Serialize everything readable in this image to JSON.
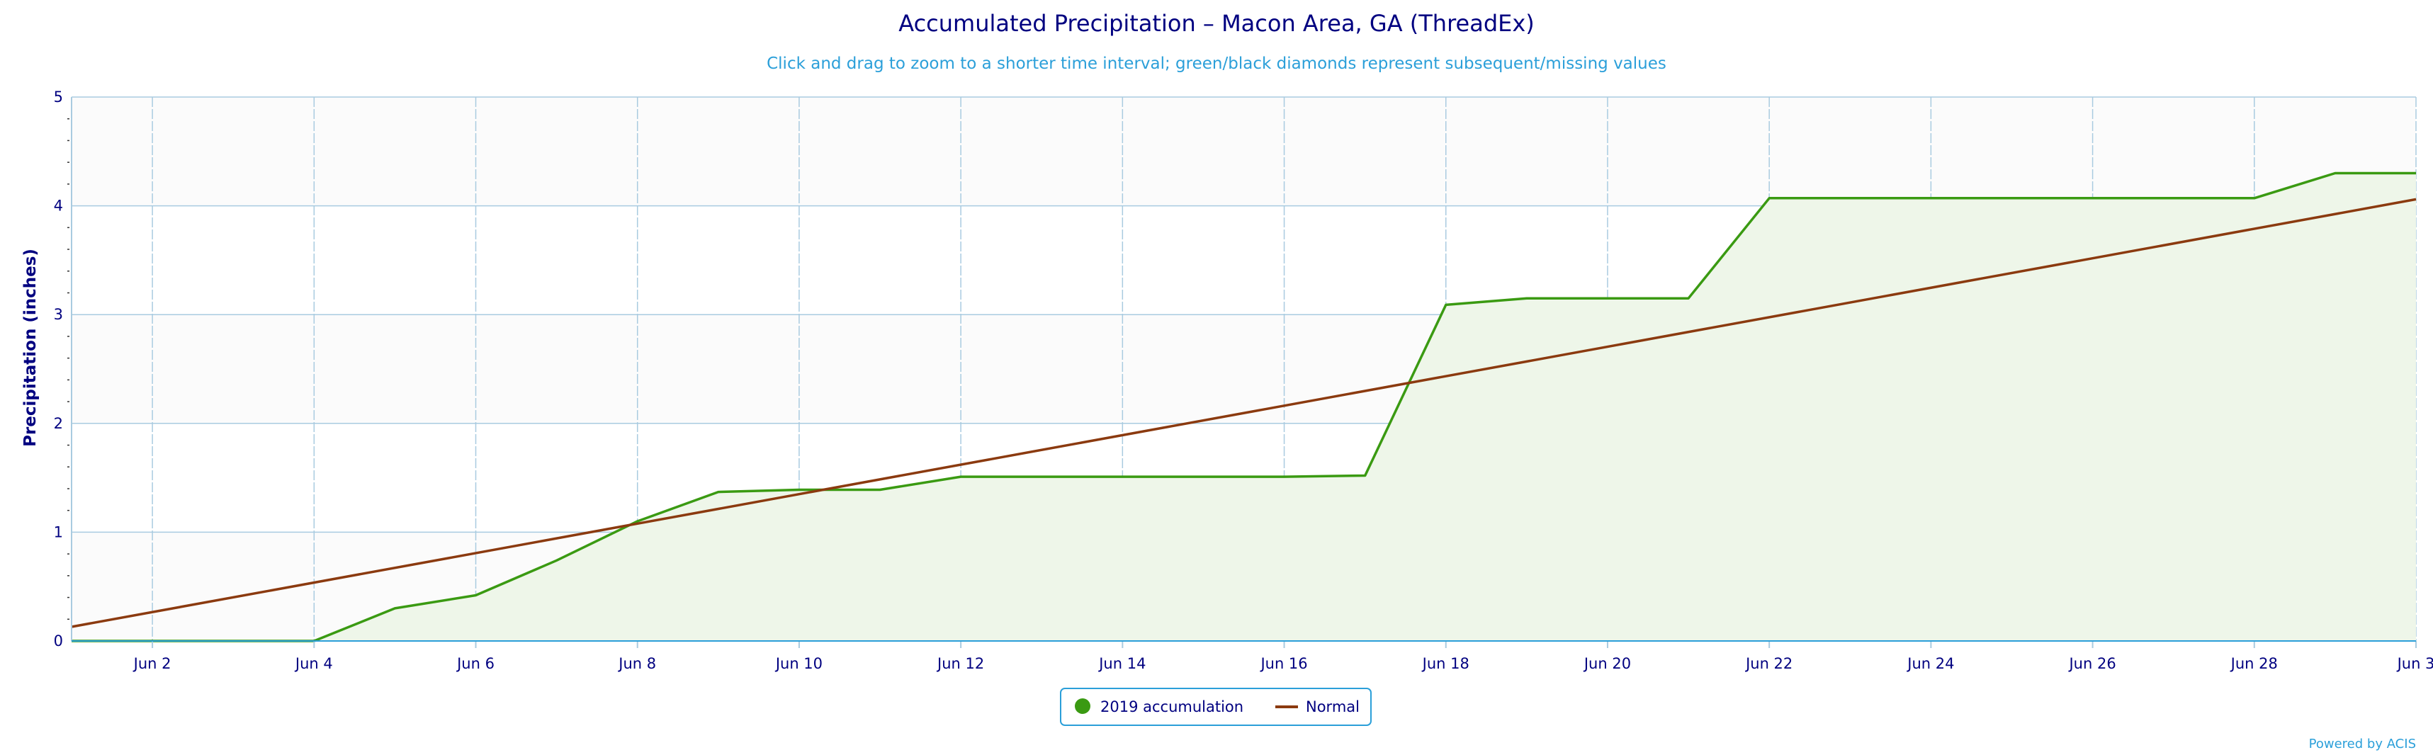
{
  "chart_data": {
    "type": "line",
    "title": "Accumulated Precipitation – Macon Area, GA (ThreadEx)",
    "subtitle": "Click and drag to zoom to a shorter time interval; green/black diamonds represent subsequent/missing values",
    "ylabel": "Precipitation (inches)",
    "xlabel": "",
    "xlim": [
      "Jun 1",
      "Jun 30"
    ],
    "ylim": [
      0,
      5
    ],
    "y_ticks": [
      0,
      1,
      2,
      3,
      4,
      5
    ],
    "x_tick_labels": [
      "Jun 2",
      "Jun 4",
      "Jun 6",
      "Jun 8",
      "Jun 10",
      "Jun 12",
      "Jun 14",
      "Jun 16",
      "Jun 18",
      "Jun 20",
      "Jun 22",
      "Jun 24",
      "Jun 26",
      "Jun 28",
      "Jun 3"
    ],
    "grid": true,
    "legend_position": "bottom-center",
    "series": [
      {
        "name": "2019 accumulation",
        "type": "area",
        "color": "#3a9a12",
        "fill_color": "#eef6e9",
        "x": [
          1,
          2,
          3,
          4,
          5,
          6,
          7,
          8,
          9,
          10,
          11,
          12,
          13,
          14,
          15,
          16,
          17,
          18,
          19,
          20,
          21,
          22,
          23,
          24,
          25,
          26,
          27,
          28,
          29,
          30
        ],
        "y": [
          0.0,
          0.0,
          0.0,
          0.0,
          0.3,
          0.42,
          0.74,
          1.1,
          1.37,
          1.39,
          1.39,
          1.51,
          1.51,
          1.51,
          1.51,
          1.51,
          1.52,
          3.09,
          3.15,
          3.15,
          3.15,
          4.07,
          4.07,
          4.07,
          4.07,
          4.07,
          4.07,
          4.07,
          4.3,
          4.3
        ]
      },
      {
        "name": "Normal",
        "type": "line",
        "color": "#8b3a0f",
        "x": [
          1,
          30
        ],
        "y": [
          0.13,
          4.06
        ]
      }
    ]
  },
  "credit": "Powered by ACIS"
}
